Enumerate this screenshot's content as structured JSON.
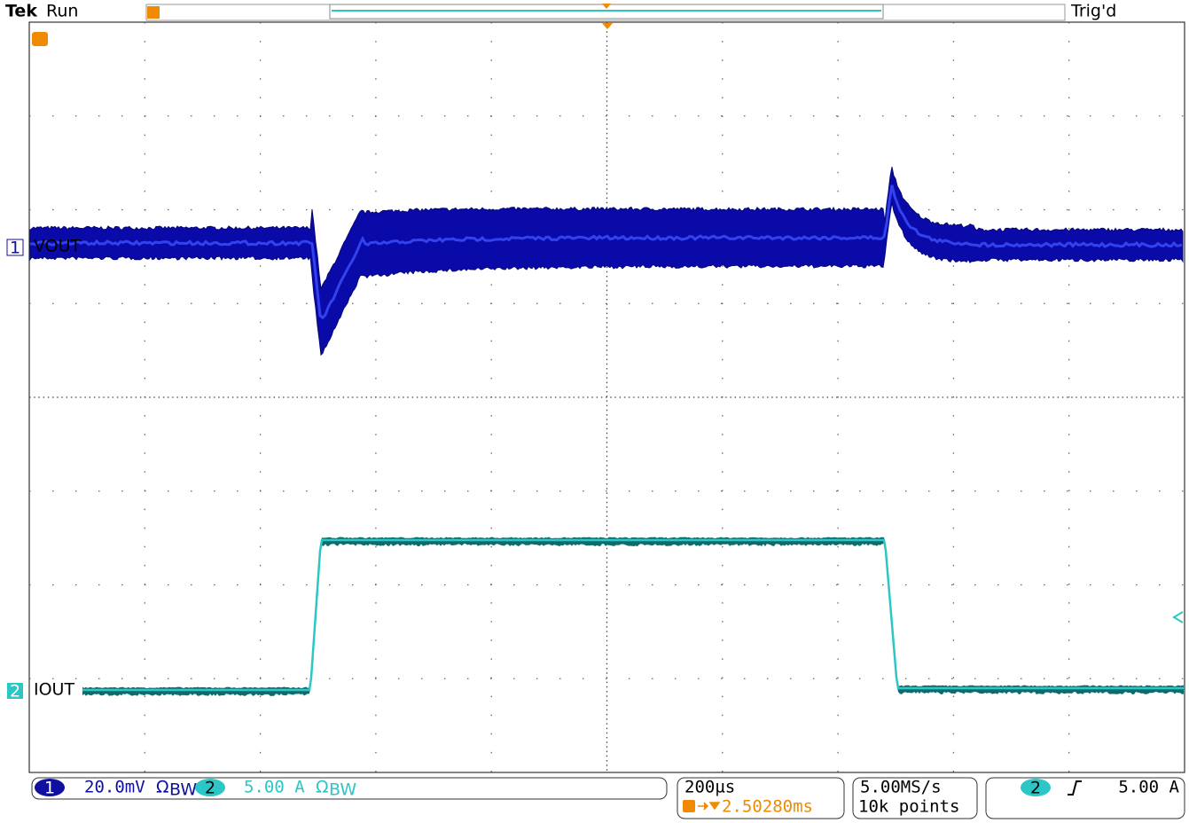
{
  "header": {
    "brand": "Tek",
    "status": "Run",
    "trigger_status": "Trig'd"
  },
  "channels": [
    {
      "number": "1",
      "label": "VOUT",
      "scale": "20.0mV",
      "coupling": "Ω",
      "bandwidth": "BW"
    },
    {
      "number": "2",
      "label": "IOUT",
      "scale": "5.00 A",
      "coupling": "Ω",
      "bandwidth": "BW"
    }
  ],
  "timebase": {
    "scale": "200µs",
    "trigger_position": "2.50280ms"
  },
  "acquisition": {
    "sample_rate": "5.00MS/s",
    "record_length": "10k points"
  },
  "trigger": {
    "source": "2",
    "level": "5.00 A"
  }
}
